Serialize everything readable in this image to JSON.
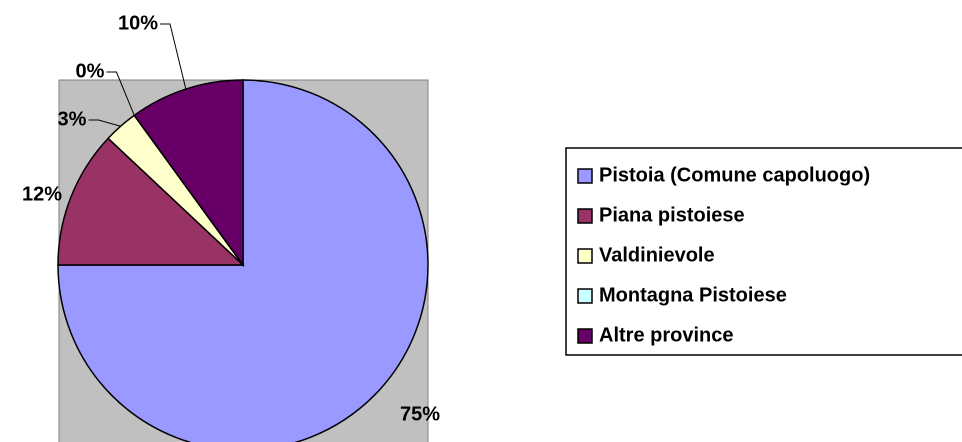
{
  "chart_data": {
    "type": "pie",
    "categories": [
      "Pistoia (Comune capoluogo)",
      "Piana pistoiese",
      "Valdinievole",
      "Montagna Pistoiese",
      "Altre province"
    ],
    "values": [
      75,
      12,
      3,
      0,
      10
    ],
    "value_labels": [
      "75%",
      "12%",
      "3%",
      "0%",
      "10%"
    ],
    "colors": [
      "#9999FF",
      "#993366",
      "#FFFFCC",
      "#CCFFFF",
      "#660066"
    ],
    "legend": "right"
  }
}
